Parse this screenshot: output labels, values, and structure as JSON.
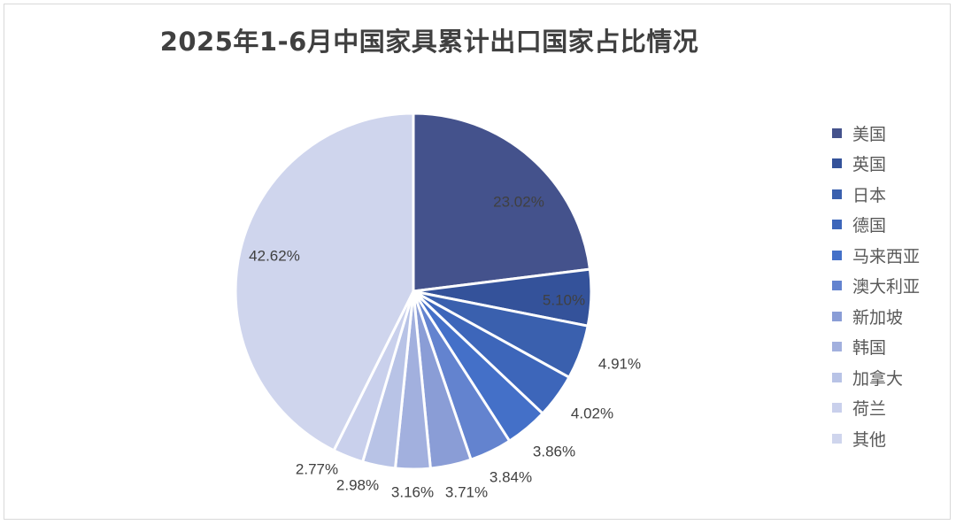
{
  "chart_data": {
    "type": "pie",
    "title": "2025年1-6月中国家具累计出口国家占比情况",
    "categories": [
      "美国",
      "英国",
      "日本",
      "德国",
      "马来西亚",
      "澳大利亚",
      "新加坡",
      "韩国",
      "加拿大",
      "荷兰",
      "其他"
    ],
    "values": [
      23.02,
      5.1,
      4.91,
      4.02,
      3.86,
      3.84,
      3.71,
      3.16,
      2.98,
      2.77,
      42.62
    ],
    "data_labels": [
      "23.02%",
      "5.10%",
      "4.91%",
      "4.02%",
      "3.86%",
      "3.84%",
      "3.71%",
      "3.16%",
      "2.98%",
      "2.77%",
      "42.62%"
    ],
    "colors": [
      "#44528c",
      "#34529a",
      "#3a60ae",
      "#3d66ba",
      "#4470c8",
      "#6383cf",
      "#8a9dd6",
      "#a2b0de",
      "#b8c3e6",
      "#c9d0ec",
      "#cfd5ed"
    ],
    "legend_position": "right",
    "start_angle": "12 o'clock, clockwise"
  }
}
